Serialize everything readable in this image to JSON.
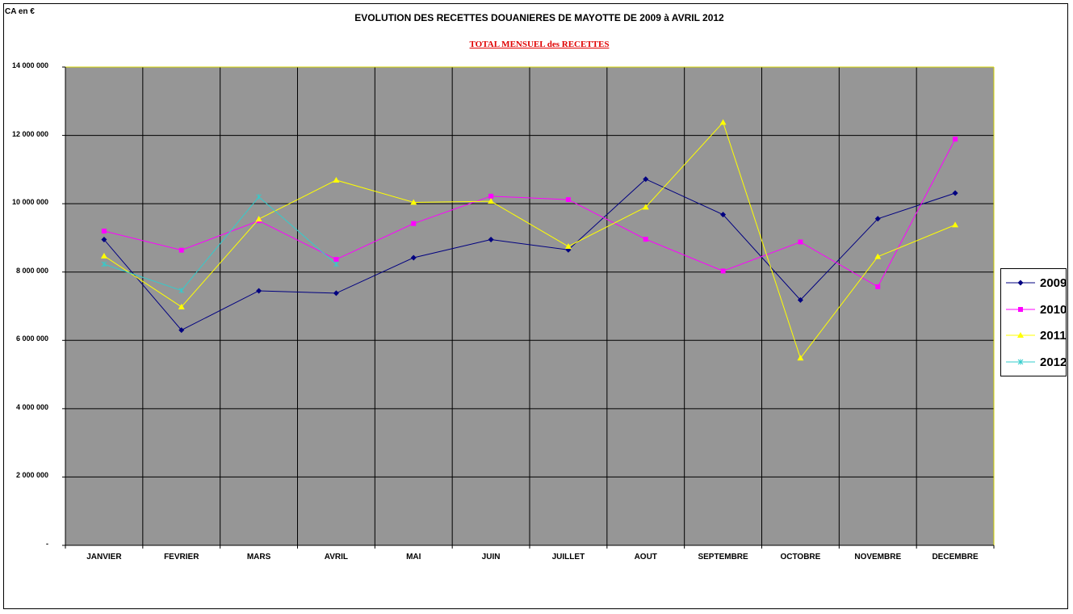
{
  "chart_data": {
    "type": "line",
    "title": "EVOLUTION DES RECETTES DOUANIERES  DE MAYOTTE DE 2009 à AVRIL 2012",
    "subtitle": "TOTAL MENSUEL des  RECETTES",
    "ylabel": "CA en €",
    "ylim": [
      0,
      14000000
    ],
    "yticks": [
      "-",
      "2 000 000",
      "4 000 000",
      "6 000 000",
      "8 000 000",
      "10 000 000",
      "12 000 000",
      "14 000 000"
    ],
    "categories": [
      "JANVIER",
      "FEVRIER",
      "MARS",
      "AVRIL",
      "MAI",
      "JUIN",
      "JUILLET",
      "AOUT",
      "SEPTEMBRE",
      "OCTOBRE",
      "NOVEMBRE",
      "DECEMBRE"
    ],
    "grid": true,
    "legend_position": "right",
    "plot_background": "#969696",
    "series": [
      {
        "name": "2009",
        "color": "#000080",
        "marker": "diamond",
        "values": [
          8950000,
          6300000,
          7450000,
          7380000,
          8420000,
          8950000,
          8650000,
          10720000,
          9680000,
          7180000,
          9560000,
          10310000
        ]
      },
      {
        "name": "2010",
        "color": "#ff00ff",
        "marker": "square",
        "values": [
          9200000,
          8640000,
          9500000,
          8370000,
          9420000,
          10220000,
          10120000,
          8960000,
          8030000,
          8880000,
          7570000,
          11890000
        ]
      },
      {
        "name": "2011",
        "color": "#ffff00",
        "marker": "triangle",
        "values": [
          8470000,
          6980000,
          9550000,
          10690000,
          10040000,
          10070000,
          8750000,
          9900000,
          12380000,
          5480000,
          8450000,
          9380000
        ]
      },
      {
        "name": "2012",
        "color": "#33cccc",
        "marker": "star",
        "values": [
          8230000,
          7460000,
          10200000,
          8230000,
          null,
          null,
          null,
          null,
          null,
          null,
          null,
          null
        ]
      }
    ]
  }
}
